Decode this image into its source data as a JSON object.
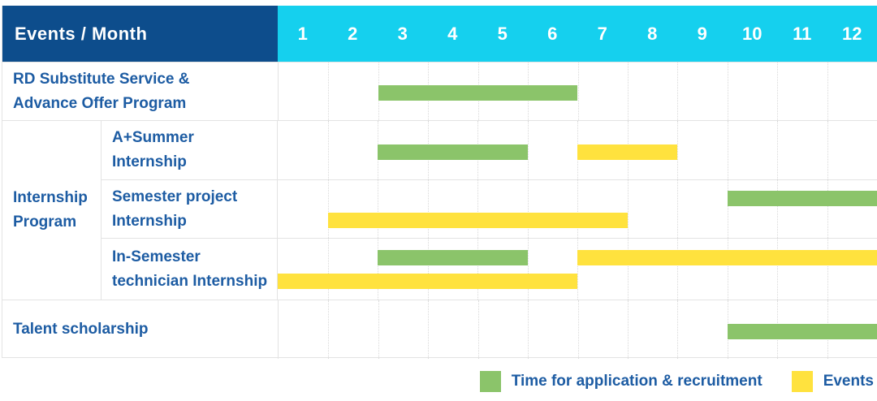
{
  "months_total": 12,
  "colors": {
    "header_bg": "#0d4d8c",
    "months_bg": "#15d0ee",
    "label_text": "#1d5ca3",
    "recruitment": "#8bc46a",
    "events": "#ffe23e"
  },
  "table": {
    "header": {
      "title": "Events / Month",
      "months": [
        "1",
        "2",
        "3",
        "4",
        "5",
        "6",
        "7",
        "8",
        "9",
        "10",
        "11",
        "12"
      ]
    },
    "group_label_lines": [
      "Internship",
      "Program"
    ],
    "rows": [
      {
        "name": "rd-substitute-service",
        "label_lines": [
          "RD Substitute Service &",
          "Advance Offer Program"
        ],
        "bars": [
          {
            "type": "recruitment",
            "start_month": 3,
            "end_month": 6,
            "lane": "mid"
          }
        ]
      },
      {
        "name": "a-plus-summer-internship",
        "label_lines": [
          "A+Summer",
          "Internship"
        ],
        "bars": [
          {
            "type": "recruitment",
            "start_month": 3,
            "end_month": 5,
            "lane": "mid"
          },
          {
            "type": "events",
            "start_month": 7,
            "end_month": 8,
            "lane": "mid"
          }
        ]
      },
      {
        "name": "semester-project-internship",
        "label_lines": [
          "Semester project",
          "Internship"
        ],
        "bars": [
          {
            "type": "recruitment",
            "start_month": 10,
            "end_month": 12,
            "lane": "top"
          },
          {
            "type": "events",
            "start_month": 2,
            "end_month": 7,
            "lane": "bottom"
          }
        ]
      },
      {
        "name": "in-semester-technician-internship",
        "label_lines": [
          "In-Semester",
          "technician Internship"
        ],
        "bars": [
          {
            "type": "recruitment",
            "start_month": 3,
            "end_month": 5,
            "lane": "top"
          },
          {
            "type": "events",
            "start_month": 7,
            "end_month": 12,
            "lane": "top"
          },
          {
            "type": "events",
            "start_month": 1,
            "end_month": 6,
            "lane": "bottom"
          }
        ]
      },
      {
        "name": "talent-scholarship",
        "label_lines": [
          "Talent scholarship"
        ],
        "bars": [
          {
            "type": "recruitment",
            "start_month": 10,
            "end_month": 12,
            "lane": "mid"
          }
        ]
      }
    ]
  },
  "legend": {
    "items": [
      {
        "type": "recruitment",
        "label": "Time for application & recruitment"
      },
      {
        "type": "events",
        "label": "Events"
      }
    ]
  },
  "chart_data": {
    "type": "bar",
    "title": "Events / Month",
    "x_axis": {
      "label": "Month",
      "ticks": [
        1,
        2,
        3,
        4,
        5,
        6,
        7,
        8,
        9,
        10,
        11,
        12
      ],
      "range": [
        1,
        12
      ]
    },
    "legend_position": "bottom-right",
    "series": [
      {
        "row": "RD Substitute Service & Advance Offer Program",
        "segments": [
          {
            "kind": "Time for application & recruitment",
            "start_month": 3,
            "end_month": 6
          }
        ]
      },
      {
        "row": "Internship Program / A+Summer Internship",
        "segments": [
          {
            "kind": "Time for application & recruitment",
            "start_month": 3,
            "end_month": 5
          },
          {
            "kind": "Events",
            "start_month": 7,
            "end_month": 8
          }
        ]
      },
      {
        "row": "Internship Program / Semester project Internship",
        "segments": [
          {
            "kind": "Time for application & recruitment",
            "start_month": 10,
            "end_month": 12
          },
          {
            "kind": "Events",
            "start_month": 2,
            "end_month": 7
          }
        ]
      },
      {
        "row": "Internship Program / In-Semester technician Internship",
        "segments": [
          {
            "kind": "Time for application & recruitment",
            "start_month": 3,
            "end_month": 5
          },
          {
            "kind": "Events",
            "start_month": 7,
            "end_month": 12
          },
          {
            "kind": "Events",
            "start_month": 1,
            "end_month": 6
          }
        ]
      },
      {
        "row": "Talent scholarship",
        "segments": [
          {
            "kind": "Time for application & recruitment",
            "start_month": 10,
            "end_month": 12
          }
        ]
      }
    ]
  }
}
